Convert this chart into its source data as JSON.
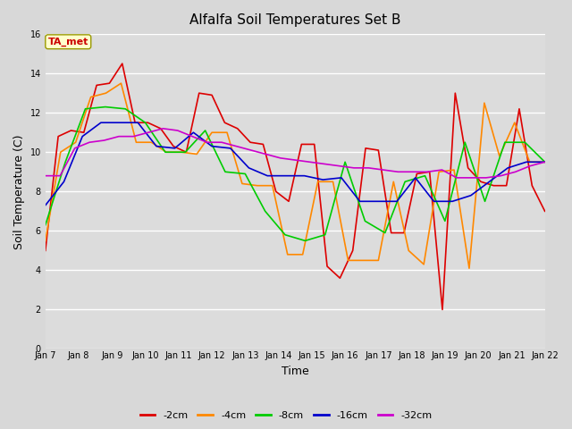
{
  "title": "Alfalfa Soil Temperatures Set B",
  "xlabel": "Time",
  "ylabel": "Soil Temperature (C)",
  "ylim": [
    0,
    16
  ],
  "yticks": [
    0,
    2,
    4,
    6,
    8,
    10,
    12,
    14,
    16
  ],
  "fig_bg_color": "#d8d8d8",
  "plot_bg_color": "#dcdcdc",
  "series_colors": {
    "-2cm": "#dd0000",
    "-4cm": "#ff8800",
    "-8cm": "#00cc00",
    "-16cm": "#0000cc",
    "-32cm": "#cc00cc"
  },
  "annotation_label": "TA_met",
  "annotation_color": "#cc0000",
  "annotation_bg": "#ffffcc",
  "x_labels": [
    "Jan 7",
    "Jan 8",
    "Jan 9",
    "Jan 10",
    "Jan 11",
    "Jan 12",
    "Jan 13",
    "Jan 14",
    "Jan 15",
    "Jan 16",
    "Jan 17",
    "Jan 18",
    "Jan 19",
    "Jan 20",
    "Jan 21",
    "Jan 22"
  ],
  "series": {
    "-2cm": [
      5.0,
      10.8,
      11.1,
      11.0,
      13.4,
      13.5,
      14.5,
      11.5,
      11.5,
      11.2,
      10.3,
      10.0,
      13.0,
      12.9,
      11.5,
      11.2,
      10.5,
      10.4,
      8.0,
      7.5,
      10.4,
      10.4,
      4.2,
      3.6,
      5.0,
      10.2,
      10.1,
      5.9,
      5.9,
      8.9,
      9.0,
      2.0,
      13.0,
      9.2,
      8.5,
      8.3,
      8.3,
      12.2,
      8.3,
      7.0
    ],
    "-4cm": [
      5.5,
      10.0,
      10.5,
      12.8,
      13.0,
      13.5,
      10.5,
      10.5,
      10.0,
      10.0,
      9.9,
      11.0,
      11.0,
      8.4,
      8.3,
      8.3,
      4.8,
      4.8,
      8.5,
      8.5,
      4.5,
      4.5,
      4.5,
      8.5,
      5.0,
      4.3,
      9.0,
      9.1,
      4.1,
      12.5,
      9.8,
      11.5,
      9.5,
      9.5
    ],
    "-8cm": [
      6.3,
      9.5,
      12.2,
      12.3,
      12.2,
      11.5,
      10.0,
      10.0,
      11.1,
      9.0,
      8.9,
      7.0,
      5.8,
      5.5,
      5.8,
      9.5,
      6.5,
      5.9,
      8.5,
      8.8,
      6.5,
      10.5,
      7.5,
      10.5,
      10.5,
      9.5
    ],
    "-16cm": [
      7.3,
      8.5,
      10.8,
      11.5,
      11.5,
      11.5,
      10.3,
      10.2,
      11.0,
      10.3,
      10.2,
      9.2,
      8.8,
      8.8,
      8.8,
      8.6,
      8.7,
      7.5,
      7.5,
      7.5,
      8.7,
      7.5,
      7.5,
      7.8,
      8.5,
      9.2,
      9.5,
      9.5
    ],
    "-32cm": [
      8.8,
      8.8,
      10.2,
      10.5,
      10.6,
      10.8,
      10.8,
      11.0,
      11.2,
      11.1,
      10.8,
      10.5,
      10.5,
      10.3,
      10.1,
      9.9,
      9.7,
      9.6,
      9.5,
      9.4,
      9.3,
      9.2,
      9.2,
      9.1,
      9.0,
      9.0,
      9.0,
      9.1,
      8.7,
      8.7,
      8.7,
      8.8,
      9.0,
      9.3,
      9.5
    ]
  }
}
